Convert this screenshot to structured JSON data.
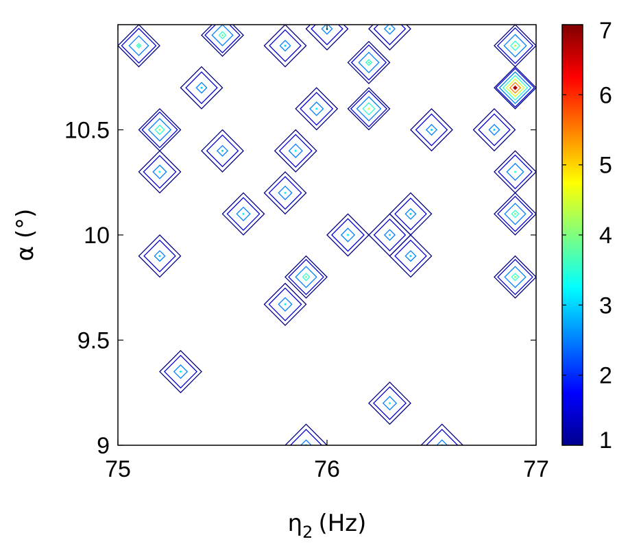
{
  "chart_data": {
    "type": "contour",
    "xlabel": "η",
    "xlabel_sub": "2",
    "xlabel_unit": "(Hz)",
    "ylabel": "α (°)",
    "xlim": [
      75,
      77
    ],
    "ylim": [
      9,
      11
    ],
    "x_ticks": [
      75,
      76,
      77
    ],
    "x_tick_labels": [
      "75",
      "76",
      "77"
    ],
    "y_ticks": [
      9,
      9.5,
      10,
      10.5
    ],
    "y_tick_labels": [
      "9",
      "9.5",
      "10",
      "10.5"
    ],
    "colorbar": {
      "min": 1,
      "max": 7,
      "ticks": [
        1,
        2,
        3,
        4,
        5,
        6,
        7
      ],
      "tick_labels": [
        "1",
        "2",
        "3",
        "4",
        "5",
        "6",
        "7"
      ],
      "colormap": "jet"
    },
    "levels": [
      1,
      1.5,
      2.5,
      3.5,
      4.5,
      5.5,
      6.5
    ],
    "grid": false,
    "peaks": [
      {
        "x": 75.1,
        "y": 10.9,
        "value": 3.8
      },
      {
        "x": 75.5,
        "y": 10.95,
        "value": 4.0
      },
      {
        "x": 75.8,
        "y": 10.9,
        "value": 3.0
      },
      {
        "x": 76.0,
        "y": 10.98,
        "value": 3.0
      },
      {
        "x": 76.2,
        "y": 10.82,
        "value": 3.9
      },
      {
        "x": 76.3,
        "y": 10.98,
        "value": 3.0
      },
      {
        "x": 75.4,
        "y": 10.7,
        "value": 3.0
      },
      {
        "x": 76.9,
        "y": 10.9,
        "value": 4.2
      },
      {
        "x": 76.9,
        "y": 10.7,
        "value": 7.0
      },
      {
        "x": 75.2,
        "y": 10.5,
        "value": 4.2
      },
      {
        "x": 75.95,
        "y": 10.6,
        "value": 3.2
      },
      {
        "x": 76.2,
        "y": 10.6,
        "value": 4.5
      },
      {
        "x": 75.5,
        "y": 10.4,
        "value": 3.0
      },
      {
        "x": 75.85,
        "y": 10.4,
        "value": 3.2
      },
      {
        "x": 76.5,
        "y": 10.5,
        "value": 3.0
      },
      {
        "x": 76.8,
        "y": 10.5,
        "value": 3.0
      },
      {
        "x": 75.2,
        "y": 10.3,
        "value": 3.2
      },
      {
        "x": 75.8,
        "y": 10.2,
        "value": 3.2
      },
      {
        "x": 76.9,
        "y": 10.3,
        "value": 3.5
      },
      {
        "x": 75.6,
        "y": 10.1,
        "value": 3.2
      },
      {
        "x": 76.4,
        "y": 10.1,
        "value": 3.0
      },
      {
        "x": 76.9,
        "y": 10.1,
        "value": 4.0
      },
      {
        "x": 76.1,
        "y": 10.0,
        "value": 3.2
      },
      {
        "x": 76.3,
        "y": 10.0,
        "value": 3.0
      },
      {
        "x": 75.2,
        "y": 9.9,
        "value": 3.0
      },
      {
        "x": 76.4,
        "y": 9.9,
        "value": 3.0
      },
      {
        "x": 76.9,
        "y": 9.8,
        "value": 4.0
      },
      {
        "x": 75.9,
        "y": 9.8,
        "value": 4.0
      },
      {
        "x": 75.8,
        "y": 9.67,
        "value": 3.2
      },
      {
        "x": 75.3,
        "y": 9.35,
        "value": 3.2
      },
      {
        "x": 76.3,
        "y": 9.2,
        "value": 3.2
      },
      {
        "x": 75.9,
        "y": 9.0,
        "value": 3.0
      },
      {
        "x": 76.55,
        "y": 9.0,
        "value": 3.0
      }
    ]
  }
}
